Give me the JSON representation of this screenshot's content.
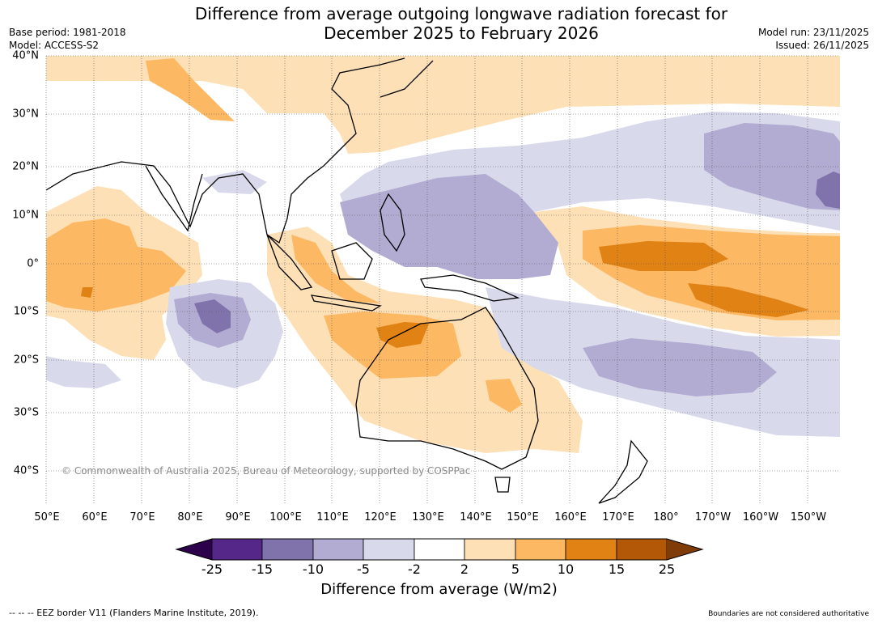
{
  "title_line1": "Difference from average outgoing longwave radiation forecast for",
  "title_line2": "December 2025 to February 2026",
  "base_period": "Base period: 1981-2018",
  "model": "Model: ACCESS-S2",
  "model_run": "Model run: 23/11/2025",
  "issued": "Issued: 26/11/2025",
  "copyright": "© Commonwealth of Australia 2025, Bureau of Meteorology, supported by COSPPac",
  "x_ticks": [
    "50°E",
    "60°E",
    "70°E",
    "80°E",
    "90°E",
    "100°E",
    "110°E",
    "120°E",
    "130°E",
    "140°E",
    "150°E",
    "160°E",
    "170°E",
    "180°",
    "170°W",
    "160°W",
    "150°W"
  ],
  "y_ticks": [
    "40°N",
    "30°N",
    "20°N",
    "10°N",
    "0°",
    "10°S",
    "20°S",
    "30°S",
    "40°S"
  ],
  "colorbar": {
    "ticks": [
      "-25",
      "-15",
      "-10",
      "-5",
      "-2",
      "2",
      "5",
      "10",
      "15",
      "25"
    ],
    "colors": [
      "#2d004b",
      "#542788",
      "#8073ac",
      "#b2abd2",
      "#d8daeb",
      "#ffffff",
      "#fee0b6",
      "#fdb863",
      "#e08214",
      "#b35806",
      "#7f3b08"
    ],
    "title": "Difference from average (W/m2)"
  },
  "footer_left": "--  --  -- EEZ border V11 (Flanders Marine Institute, 2019).",
  "footer_right": "Boundaries are not considered authoritative"
}
